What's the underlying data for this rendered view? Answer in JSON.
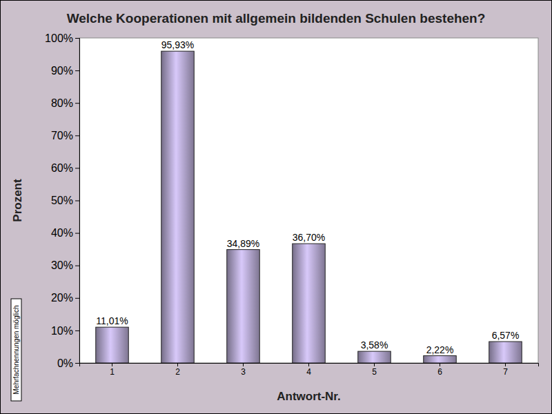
{
  "chart_data": {
    "type": "bar",
    "title": "Welche Kooperationen mit allgemein bildenden Schulen bestehen?",
    "x_label": "Antwort-Nr.",
    "y_label": "Prozent",
    "annotations": [
      "Mehrfachnennungen möglich"
    ],
    "categories": [
      "1",
      "2",
      "3",
      "4",
      "5",
      "6",
      "7"
    ],
    "values": [
      11.01,
      95.93,
      34.89,
      36.7,
      3.58,
      2.22,
      6.57
    ],
    "value_labels": [
      "11,01%",
      "95,93%",
      "34,89%",
      "36,70%",
      "3,58%",
      "2,22%",
      "6,57%"
    ],
    "data_labels": true,
    "color": "#9d92b5",
    "ylim": [
      0,
      100
    ],
    "yticks": [
      {
        "value": 0,
        "label": "0%"
      },
      {
        "value": 10,
        "label": "10%"
      },
      {
        "value": 20,
        "label": "20%"
      },
      {
        "value": 30,
        "label": "30%"
      },
      {
        "value": 40,
        "label": "40%"
      },
      {
        "value": 50,
        "label": "50%"
      },
      {
        "value": 60,
        "label": "60%"
      },
      {
        "value": 70,
        "label": "70%"
      },
      {
        "value": 80,
        "label": "80%"
      },
      {
        "value": 90,
        "label": "90%"
      },
      {
        "value": 100,
        "label": "100%"
      }
    ],
    "grid": false
  }
}
